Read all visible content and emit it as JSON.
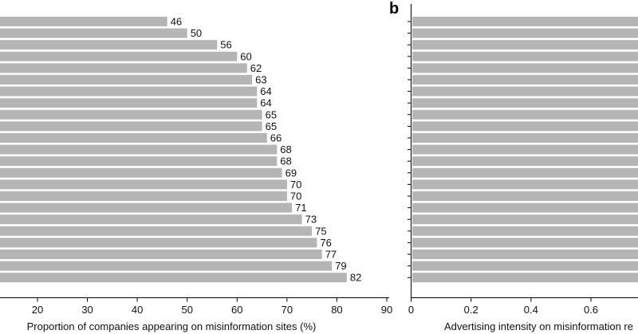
{
  "chart_data": [
    {
      "type": "bar",
      "orientation": "horizontal",
      "panel": "",
      "values": [
        46,
        50,
        56,
        60,
        62,
        63,
        64,
        64,
        65,
        65,
        66,
        68,
        68,
        69,
        70,
        70,
        71,
        73,
        75,
        76,
        77,
        79,
        82
      ],
      "xlabel": "Proportion of companies appearing on misinformation sites (%)",
      "xticks": [
        20,
        30,
        40,
        50,
        60,
        70,
        80,
        90
      ],
      "xlim": [
        13,
        90
      ],
      "grid": false,
      "bar_color": "#b5b5b5"
    },
    {
      "type": "bar",
      "orientation": "horizontal",
      "panel": "b",
      "bar_count": 23,
      "values": [],
      "xlabel": "Advertising intensity on misinformation re",
      "xticks": [
        "0",
        "0.2",
        "0.4",
        "0.6"
      ],
      "xtick_values": [
        0,
        0.2,
        0.4,
        0.6
      ],
      "grid": false,
      "bar_color": "#b5b5b5"
    }
  ]
}
